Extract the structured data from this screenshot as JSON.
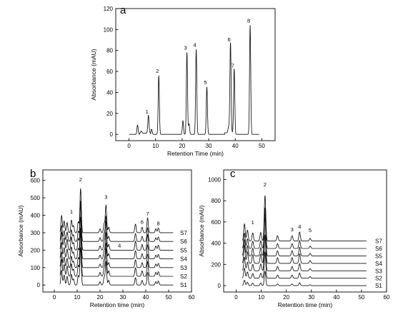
{
  "chart_data": [
    {
      "type": "line",
      "panel": "a",
      "xlabel": "Retention Time (min)",
      "ylabel": "Absorbance (mAU)",
      "xlim": [
        -5,
        55
      ],
      "ylim": [
        -6,
        120
      ],
      "xticks": [
        0,
        10,
        20,
        30,
        40,
        50
      ],
      "yticks": [
        0,
        20,
        40,
        60,
        80,
        100,
        120
      ],
      "peaks": [
        {
          "label": "1",
          "x": 7.3,
          "y": 17
        },
        {
          "label": "2",
          "x": 11.2,
          "y": 56
        },
        {
          "label": "3",
          "x": 21.8,
          "y": 78
        },
        {
          "label": "4",
          "x": 25.3,
          "y": 81
        },
        {
          "label": "5",
          "x": 29.3,
          "y": 45
        },
        {
          "label": "6",
          "x": 38.2,
          "y": 86
        },
        {
          "label": "7",
          "x": 39.6,
          "y": 61
        },
        {
          "label": "8",
          "x": 45.6,
          "y": 104
        }
      ],
      "minor_peaks": [
        [
          3.2,
          9
        ],
        [
          4.6,
          2
        ],
        [
          8.5,
          5
        ],
        [
          20.3,
          13
        ],
        [
          22.6,
          10
        ],
        [
          37.5,
          6
        ]
      ]
    },
    {
      "type": "line",
      "panel": "b",
      "xlabel": "Retention time (min)",
      "ylabel": "Absorbance (mAU)",
      "xlim": [
        -5,
        60
      ],
      "ylim": [
        -40,
        660
      ],
      "xticks": [
        0,
        10,
        20,
        30,
        40,
        50,
        60
      ],
      "yticks": [
        0,
        100,
        200,
        300,
        400,
        500,
        600
      ],
      "offset_step": 50,
      "series": [
        {
          "name": "S1",
          "offset": 0
        },
        {
          "name": "S2",
          "offset": 50
        },
        {
          "name": "S3",
          "offset": 100
        },
        {
          "name": "S4",
          "offset": 150
        },
        {
          "name": "S5",
          "offset": 200
        },
        {
          "name": "S6",
          "offset": 250
        },
        {
          "name": "S7",
          "offset": 300
        }
      ],
      "peaks": [
        [
          3.2,
          110
        ],
        [
          4.3,
          75
        ],
        [
          5.6,
          65
        ],
        [
          7.5,
          80
        ],
        [
          8.4,
          45
        ],
        [
          10.5,
          70
        ],
        [
          11.5,
          280
        ],
        [
          20.0,
          25
        ],
        [
          21.8,
          55
        ],
        [
          22.6,
          175
        ],
        [
          23.8,
          35
        ],
        [
          35.5,
          55
        ],
        [
          38.4,
          35
        ],
        [
          40.8,
          95
        ],
        [
          44.4,
          25
        ],
        [
          45.5,
          30
        ]
      ],
      "peak_labels": [
        {
          "label": "1",
          "x": 7.5,
          "y": 410
        },
        {
          "label": "2",
          "x": 11.5,
          "y": 595
        },
        {
          "label": "3",
          "x": 22.6,
          "y": 495
        },
        {
          "label": "4",
          "x": 28.5,
          "y": 215
        },
        {
          "label": "6",
          "x": 38.4,
          "y": 350
        },
        {
          "label": "7",
          "x": 40.8,
          "y": 398
        },
        {
          "label": "8",
          "x": 45.5,
          "y": 342
        }
      ]
    },
    {
      "type": "line",
      "panel": "c",
      "xlabel": "Retention time (min)",
      "ylabel": "Absorbance (mAU)",
      "xlim": [
        -5,
        60
      ],
      "ylim": [
        -60,
        1090
      ],
      "xticks": [
        0,
        10,
        20,
        30,
        40,
        50,
        60
      ],
      "yticks": [
        0,
        200,
        400,
        600,
        800,
        1000
      ],
      "offset_step": 70,
      "series": [
        {
          "name": "S1",
          "offset": 0
        },
        {
          "name": "S2",
          "offset": 70
        },
        {
          "name": "S3",
          "offset": 140
        },
        {
          "name": "S4",
          "offset": 210
        },
        {
          "name": "S5",
          "offset": 280
        },
        {
          "name": "S6",
          "offset": 350
        },
        {
          "name": "S7",
          "offset": 420
        }
      ],
      "peaks": [
        [
          3.3,
          190
        ],
        [
          4.5,
          120
        ],
        [
          6.6,
          90
        ],
        [
          9.8,
          95
        ],
        [
          11.5,
          500
        ],
        [
          16.5,
          60
        ],
        [
          22.3,
          60
        ],
        [
          25.3,
          100
        ],
        [
          29.5,
          30
        ]
      ],
      "peak_labels": [
        {
          "label": "1",
          "x": 6.6,
          "y": 580
        },
        {
          "label": "2",
          "x": 11.5,
          "y": 935
        },
        {
          "label": "3",
          "x": 22.3,
          "y": 510
        },
        {
          "label": "4",
          "x": 25.3,
          "y": 540
        },
        {
          "label": "5",
          "x": 29.5,
          "y": 505
        }
      ]
    }
  ],
  "panel_letters": {
    "a": "a",
    "b": "b",
    "c": "c"
  },
  "series_colors": {
    "trace": "#111111"
  }
}
